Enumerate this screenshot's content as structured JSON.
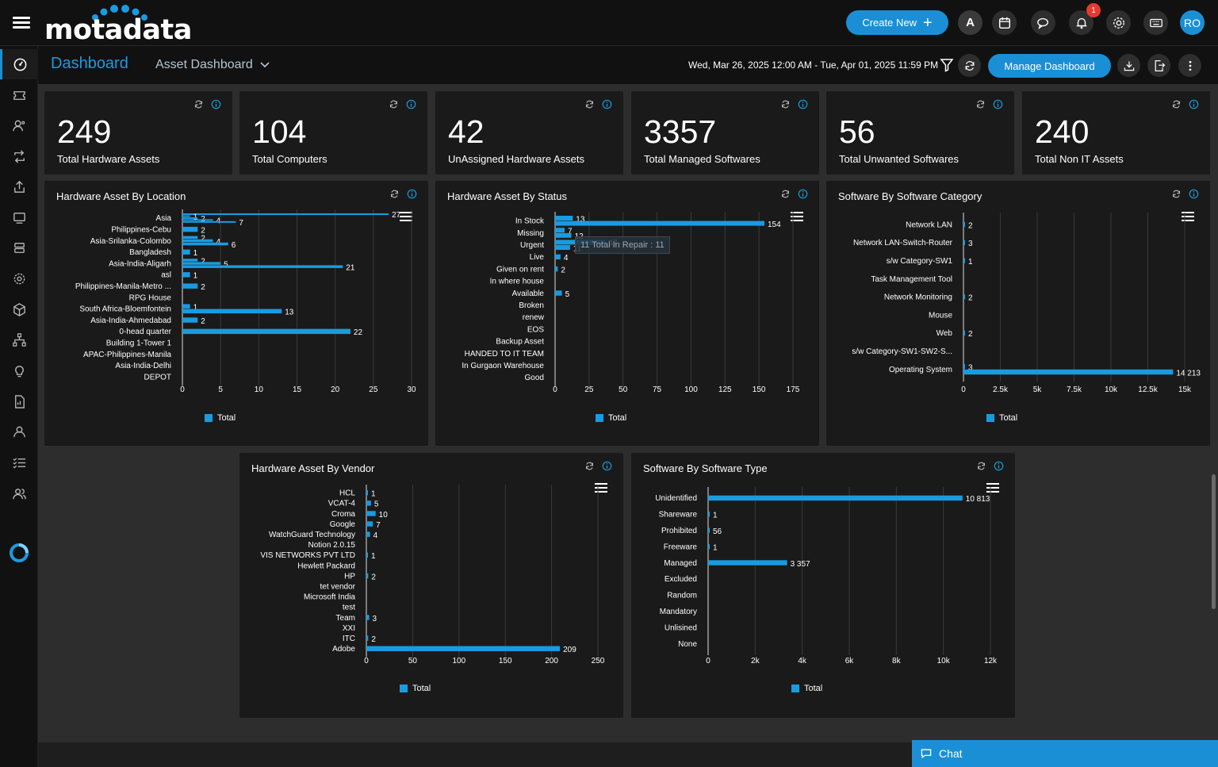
{
  "app": {
    "logo_text": "motadata"
  },
  "topbar": {
    "create_label": "Create New",
    "avatar_text": "A",
    "notification_count": "1",
    "user_initials": "RO"
  },
  "header": {
    "title": "Dashboard",
    "dashboard_select": "Asset Dashboard",
    "date_range": "Wed, Mar 26, 2025 12:00 AM - Tue, Apr 01, 2025 11:59 PM",
    "manage_label": "Manage Dashboard"
  },
  "kpis": [
    {
      "value": "249",
      "label": "Total Hardware Assets"
    },
    {
      "value": "104",
      "label": "Total Computers"
    },
    {
      "value": "42",
      "label": "UnAssigned Hardware Assets"
    },
    {
      "value": "3357",
      "label": "Total Managed Softwares"
    },
    {
      "value": "56",
      "label": "Total Unwanted Softwares"
    },
    {
      "value": "240",
      "label": "Total Non IT Assets"
    }
  ],
  "legend_label": "Total",
  "chat_label": "Chat",
  "colors": {
    "accent": "#1a9be0",
    "background": "#2d2d2d",
    "card": "#1a1a1a"
  },
  "chart_data": [
    {
      "type": "bar",
      "orientation": "horizontal",
      "title": "Hardware Asset By Location",
      "categories": [
        "Asia",
        "Philippines-Cebu",
        "Asia-Srilanka-Colombo",
        "Bangladesh",
        "Asia-India-Aligarh",
        "asl",
        "Philippines-Manila-Metro ...",
        "RPG House",
        "South Africa-Bloemfontein",
        "Asia-India-Ahmedabad",
        "0-head quarter",
        "Building 1-Tower 1",
        "APAC-Philippines-Manila",
        "Asia-India-Delhi",
        "DEPOT"
      ],
      "bars": [
        {
          "row": 0,
          "value": 27
        },
        {
          "row": 0,
          "value": 1
        },
        {
          "row": 0,
          "value": 2
        },
        {
          "row": 0,
          "value": 4
        },
        {
          "row": 0,
          "value": 7
        },
        {
          "row": 1,
          "value": 2
        },
        {
          "row": 2,
          "value": 2
        },
        {
          "row": 2,
          "value": 4
        },
        {
          "row": 2,
          "value": 6
        },
        {
          "row": 3,
          "value": 1
        },
        {
          "row": 4,
          "value": 2
        },
        {
          "row": 4,
          "value": 5
        },
        {
          "row": 4,
          "value": 21
        },
        {
          "row": 5,
          "value": 1
        },
        {
          "row": 6,
          "value": 2
        },
        {
          "row": 8,
          "value": 1
        },
        {
          "row": 8,
          "value": 13
        },
        {
          "row": 9,
          "value": 2
        },
        {
          "row": 10,
          "value": 22
        }
      ],
      "xlim": [
        0,
        30
      ],
      "xticks": [
        0,
        5,
        10,
        15,
        20,
        25,
        30
      ],
      "series": [
        {
          "name": "Total"
        }
      ]
    },
    {
      "type": "bar",
      "orientation": "horizontal",
      "title": "Hardware Asset By Status",
      "categories": [
        "In Stock",
        "Missing",
        "Urgent",
        "Live",
        "Given on rent",
        "In where house",
        "Available",
        "Broken",
        "renew",
        "EOS",
        "Backup Asset",
        "HANDED TO IT TEAM",
        "In Gurgaon Warehouse",
        "Good"
      ],
      "bars": [
        {
          "row": 0,
          "value": 13
        },
        {
          "row": 0,
          "value": 154
        },
        {
          "row": 1,
          "value": 7
        },
        {
          "row": 1,
          "value": 12
        },
        {
          "row": 2,
          "value": 37
        },
        {
          "row": 2,
          "value": 11
        },
        {
          "row": 3,
          "value": 4
        },
        {
          "row": 4,
          "value": 2
        },
        {
          "row": 6,
          "value": 5
        }
      ],
      "tooltip": "11 Total In Repair : 11",
      "xlim": [
        0,
        175
      ],
      "xticks": [
        0,
        25,
        50,
        75,
        100,
        125,
        150,
        175
      ],
      "series": [
        {
          "name": "Total"
        }
      ]
    },
    {
      "type": "bar",
      "orientation": "horizontal",
      "title": "Software By Software Category",
      "categories": [
        "Network LAN",
        "Network LAN-Switch-Router",
        "s/w Category-SW1",
        "Task Management Tool",
        "Network Monitoring",
        "Mouse",
        "Web",
        "s/w Category-SW1-SW2-S...",
        "Operating System"
      ],
      "bars": [
        {
          "row": 0,
          "value": 2
        },
        {
          "row": 1,
          "value": 3
        },
        {
          "row": 2,
          "value": 1
        },
        {
          "row": 4,
          "value": 2
        },
        {
          "row": 6,
          "value": 2
        },
        {
          "row": 8,
          "value": 3
        },
        {
          "row": 8,
          "value": 14213
        }
      ],
      "value_labels": {
        "14213": "14 213"
      },
      "xlim": [
        0,
        15000
      ],
      "xticks": [
        "0",
        "2.5k",
        "5k",
        "7.5k",
        "10k",
        "12.5k",
        "15k"
      ],
      "series": [
        {
          "name": "Total"
        }
      ]
    },
    {
      "type": "bar",
      "orientation": "horizontal",
      "title": "Hardware Asset By Vendor",
      "categories": [
        "HCL",
        "VCAT-4",
        "Croma",
        "Google",
        "WatchGuard Technology",
        "Notion 2.0.15",
        "VIS NETWORKS PVT LTD",
        "Hewlett Packard",
        "HP",
        "tet vendor",
        "Microsoft India",
        "test",
        "Team",
        "XXI",
        "ITC",
        "Adobe"
      ],
      "bars": [
        {
          "row": 0,
          "value": 1
        },
        {
          "row": 1,
          "value": 5
        },
        {
          "row": 2,
          "value": 10
        },
        {
          "row": 3,
          "value": 7
        },
        {
          "row": 4,
          "value": 4
        },
        {
          "row": 6,
          "value": 1
        },
        {
          "row": 8,
          "value": 2
        },
        {
          "row": 12,
          "value": 3
        },
        {
          "row": 14,
          "value": 2
        },
        {
          "row": 15,
          "value": 209
        }
      ],
      "xlim": [
        0,
        250
      ],
      "xticks": [
        0,
        50,
        100,
        150,
        200,
        250
      ],
      "series": [
        {
          "name": "Total"
        }
      ]
    },
    {
      "type": "bar",
      "orientation": "horizontal",
      "title": "Software By Software Type",
      "categories": [
        "Unidentified",
        "Shareware",
        "Prohibited",
        "Freeware",
        "Managed",
        "Excluded",
        "Random",
        "Mandatory",
        "Unlisined",
        "None"
      ],
      "bars": [
        {
          "row": 0,
          "value": 10813
        },
        {
          "row": 1,
          "value": 1
        },
        {
          "row": 2,
          "value": 56
        },
        {
          "row": 3,
          "value": 1
        },
        {
          "row": 4,
          "value": 3357
        }
      ],
      "value_labels": {
        "10813": "10 813",
        "3357": "3 357"
      },
      "xlim": [
        0,
        12000
      ],
      "xticks": [
        "0",
        "2k",
        "4k",
        "6k",
        "8k",
        "10k",
        "12k"
      ],
      "series": [
        {
          "name": "Total"
        }
      ]
    }
  ]
}
